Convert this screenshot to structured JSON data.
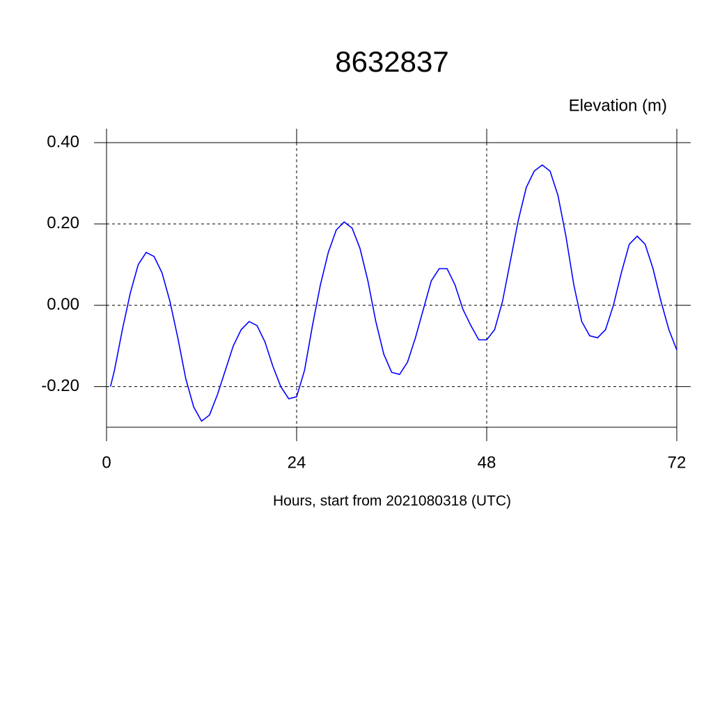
{
  "chart_data": {
    "type": "line",
    "title": "8632837",
    "y_label": "Elevation (m)",
    "x_label": "Hours, start from 2021080318 (UTC)",
    "x": [
      0.5,
      1,
      2,
      3,
      4,
      5,
      6,
      7,
      8,
      9,
      10,
      11,
      12,
      13,
      14,
      15,
      16,
      17,
      18,
      19,
      20,
      21,
      22,
      23,
      24,
      25,
      26,
      27,
      28,
      29,
      30,
      31,
      32,
      33,
      34,
      35,
      36,
      37,
      38,
      39,
      40,
      41,
      42,
      43,
      44,
      45,
      46,
      47,
      48,
      49,
      50,
      51,
      52,
      53,
      54,
      55,
      56,
      57,
      58,
      59,
      60,
      61,
      62,
      63,
      64,
      65,
      66,
      67,
      68,
      69,
      70,
      71,
      72
    ],
    "series": [
      {
        "color": "#0000ff",
        "values": [
          -0.2,
          -0.16,
          -0.06,
          0.03,
          0.1,
          0.13,
          0.12,
          0.08,
          0.01,
          -0.08,
          -0.18,
          -0.25,
          -0.285,
          -0.27,
          -0.22,
          -0.16,
          -0.1,
          -0.06,
          -0.04,
          -0.05,
          -0.09,
          -0.15,
          -0.2,
          -0.23,
          -0.225,
          -0.16,
          -0.05,
          0.05,
          0.13,
          0.185,
          0.205,
          0.19,
          0.14,
          0.06,
          -0.04,
          -0.12,
          -0.165,
          -0.17,
          -0.14,
          -0.08,
          -0.01,
          0.06,
          0.09,
          0.09,
          0.05,
          -0.01,
          -0.05,
          -0.085,
          -0.085,
          -0.06,
          0.01,
          0.11,
          0.21,
          0.29,
          0.33,
          0.345,
          0.33,
          0.27,
          0.17,
          0.05,
          -0.04,
          -0.075,
          -0.08,
          -0.06,
          0.0,
          0.08,
          0.15,
          0.17,
          0.15,
          0.09,
          0.01,
          -0.06,
          -0.11
        ]
      }
    ],
    "xlim": [
      0,
      72
    ],
    "xticks": [
      0,
      24,
      48,
      72
    ],
    "ylim": [
      -0.3,
      0.4
    ],
    "yticks": [
      {
        "value": 0.4,
        "label": "0.40"
      },
      {
        "value": 0.2,
        "label": "0.20"
      },
      {
        "value": 0,
        "label": "0.00"
      },
      {
        "value": -0.2,
        "label": "-0.20"
      }
    ],
    "grid": true
  }
}
